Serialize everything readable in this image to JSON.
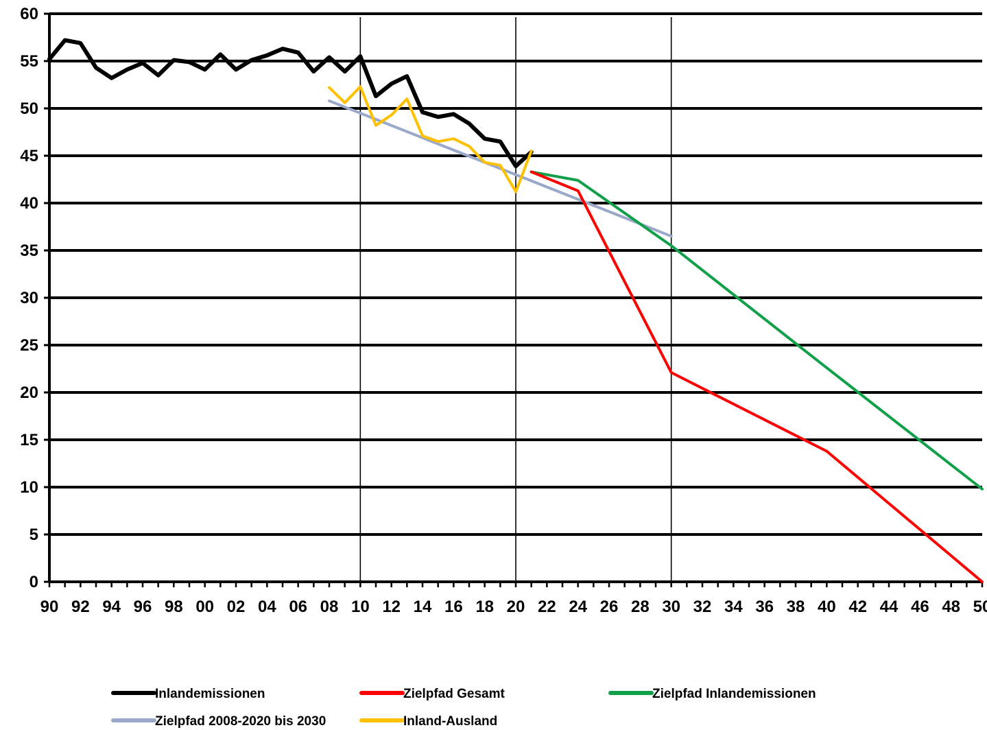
{
  "chart_data": {
    "type": "line",
    "title": "",
    "xlabel": "",
    "ylabel": "",
    "xlim": [
      1990,
      2050
    ],
    "ylim": [
      0,
      60
    ],
    "grid": "horizontal",
    "legend_position": "bottom",
    "y_ticks": [
      "0",
      "5",
      "10",
      "15",
      "20",
      "25",
      "30",
      "35",
      "40",
      "45",
      "50",
      "55",
      "60"
    ],
    "x_tick_years": [
      1990,
      1992,
      1994,
      1996,
      1998,
      2000,
      2002,
      2004,
      2006,
      2008,
      2010,
      2012,
      2014,
      2016,
      2018,
      2020,
      2022,
      2024,
      2026,
      2028,
      2030,
      2032,
      2034,
      2036,
      2038,
      2040,
      2042,
      2044,
      2046,
      2048,
      2050
    ],
    "x_tick_labels": [
      "90",
      "92",
      "94",
      "96",
      "98",
      "00",
      "02",
      "04",
      "06",
      "08",
      "10",
      "12",
      "14",
      "16",
      "18",
      "20",
      "22",
      "24",
      "26",
      "28",
      "30",
      "32",
      "34",
      "36",
      "38",
      "40",
      "42",
      "44",
      "46",
      "48",
      "50"
    ],
    "vertical_markers": [
      2010,
      2020,
      2030
    ],
    "series": [
      {
        "name": "Inlandemissionen",
        "color": "#000000",
        "x": [
          1990,
          1991,
          1992,
          1993,
          1994,
          1995,
          1996,
          1997,
          1998,
          1999,
          2000,
          2001,
          2002,
          2003,
          2004,
          2005,
          2006,
          2007,
          2008,
          2009,
          2010,
          2011,
          2012,
          2013,
          2014,
          2015,
          2016,
          2017,
          2018,
          2019,
          2020,
          2021
        ],
        "y": [
          55.2,
          57.2,
          56.9,
          54.3,
          53.2,
          54.1,
          54.8,
          53.5,
          55.1,
          54.9,
          54.1,
          55.7,
          54.1,
          55.1,
          55.6,
          56.3,
          55.9,
          53.9,
          55.4,
          53.9,
          55.5,
          51.3,
          52.6,
          53.4,
          49.6,
          49.1,
          49.4,
          48.4,
          46.8,
          46.5,
          43.9,
          45.4
        ]
      },
      {
        "name": "Zielpfad Gesamt",
        "color": "#ff0000",
        "x": [
          2021,
          2024,
          2030,
          2040,
          2050
        ],
        "y": [
          43.3,
          41.3,
          22.1,
          13.8,
          0
        ]
      },
      {
        "name": "Zielpfad Inlandemissionen",
        "color": "#11a04a",
        "x": [
          2021,
          2024,
          2030,
          2040,
          2050
        ],
        "y": [
          43.3,
          42.4,
          35.5,
          22.6,
          9.8
        ]
      },
      {
        "name": "Zielpfad 2008-2020 bis 2030",
        "color": "#9aa9c9",
        "x": [
          2008,
          2030
        ],
        "y": [
          50.8,
          36.5
        ]
      },
      {
        "name": "Inland-Ausland",
        "color": "#ffc000",
        "x": [
          2008,
          2009,
          2010,
          2011,
          2012,
          2013,
          2014,
          2015,
          2016,
          2017,
          2018,
          2019,
          2020,
          2021
        ],
        "y": [
          52.2,
          50.6,
          52.3,
          48.2,
          49.3,
          51.0,
          47.1,
          46.5,
          46.8,
          46.0,
          44.3,
          44.0,
          41.2,
          45.5
        ]
      }
    ]
  }
}
